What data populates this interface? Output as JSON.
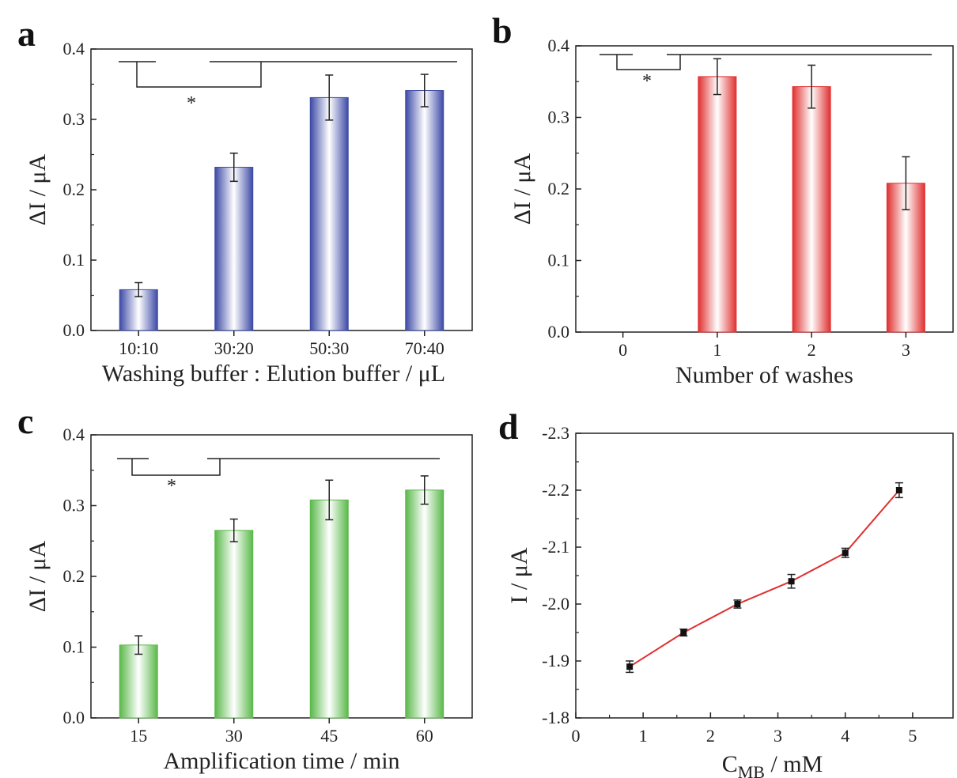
{
  "chart_data": [
    {
      "panel": "a",
      "type": "bar",
      "categories": [
        "10:10",
        "30:20",
        "50:30",
        "70:40"
      ],
      "values": [
        0.058,
        0.232,
        0.331,
        0.341
      ],
      "errors": [
        0.01,
        0.02,
        0.032,
        0.023
      ],
      "xlabel": "Washing buffer : Elution buffer / μL",
      "ylabel": "ΔI / μA",
      "ylim": [
        0.0,
        0.4
      ],
      "yticks": [
        "0.0",
        "0.1",
        "0.2",
        "0.3",
        "0.4"
      ],
      "color": "#3d4aa6",
      "significance": "*"
    },
    {
      "panel": "b",
      "type": "bar",
      "categories": [
        "0",
        "1",
        "2",
        "3"
      ],
      "values": [
        0.0,
        0.357,
        0.343,
        0.208
      ],
      "errors": [
        0.0,
        0.025,
        0.03,
        0.037
      ],
      "xlabel": "Number of washes",
      "ylabel": "ΔI / μA",
      "ylim": [
        0.0,
        0.4
      ],
      "yticks": [
        "0.0",
        "0.1",
        "0.2",
        "0.3",
        "0.4"
      ],
      "color": "#e03030",
      "significance": "*"
    },
    {
      "panel": "c",
      "type": "bar",
      "categories": [
        "15",
        "30",
        "45",
        "60"
      ],
      "values": [
        0.103,
        0.265,
        0.308,
        0.322
      ],
      "errors": [
        0.013,
        0.016,
        0.028,
        0.02
      ],
      "xlabel": "Amplification time / min",
      "ylabel": "ΔI / μA",
      "ylim": [
        0.0,
        0.4
      ],
      "yticks": [
        "0.0",
        "0.1",
        "0.2",
        "0.3",
        "0.4"
      ],
      "color": "#5ab94a",
      "significance": "*"
    },
    {
      "panel": "d",
      "type": "line",
      "x": [
        0.8,
        1.6,
        2.4,
        3.2,
        4.0,
        4.8
      ],
      "y": [
        -1.89,
        -1.95,
        -2.0,
        -2.04,
        -2.09,
        -2.2
      ],
      "errors": [
        0.01,
        0.006,
        0.007,
        0.012,
        0.008,
        0.013
      ],
      "xlabel_main": "C",
      "xlabel_sub": "MB",
      "xlabel_unit": " / mM",
      "ylabel": "I / μA",
      "xlim": [
        0,
        5.6
      ],
      "xticks": [
        "0",
        "1",
        "2",
        "3",
        "4",
        "5"
      ],
      "ylim": [
        -1.8,
        -2.3
      ],
      "yticks": [
        "-1.8",
        "-1.9",
        "-2.0",
        "-2.1",
        "-2.2",
        "-2.3"
      ],
      "line_color": "#e03030",
      "marker_color": "#111111"
    }
  ]
}
